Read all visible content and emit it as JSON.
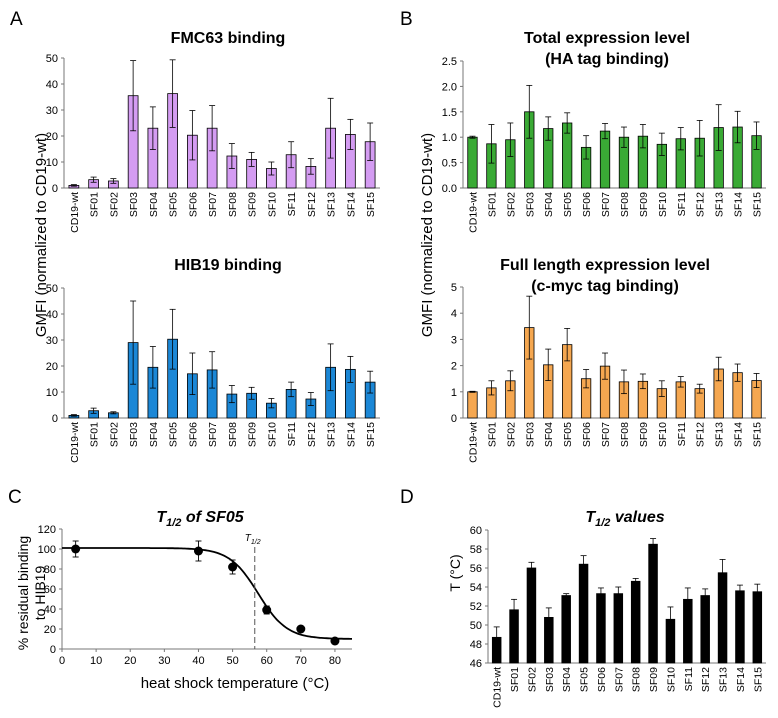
{
  "panels": [
    "A",
    "B",
    "C",
    "D"
  ],
  "shared_ylabel_ab": "GMFI (normalized to CD19-wt)",
  "chart_data": [
    {
      "id": "fmc63",
      "type": "bar",
      "title": "FMC63 binding",
      "color": "#d49cf2",
      "categories": [
        "CD19-wt",
        "SF01",
        "SF02",
        "SF03",
        "SF04",
        "SF05",
        "SF06",
        "SF07",
        "SF08",
        "SF09",
        "SF10",
        "SF11",
        "SF12",
        "SF13",
        "SF14",
        "SF15"
      ],
      "values": [
        1,
        3.2,
        2.7,
        35.5,
        23,
        36.3,
        20.3,
        23,
        12.3,
        11,
        7.5,
        12.8,
        8.3,
        23,
        20.6,
        17.8
      ],
      "errors": [
        0.3,
        1.0,
        0.9,
        13.5,
        8.2,
        13,
        9.5,
        8.7,
        4.8,
        2.7,
        2.5,
        5.0,
        3.0,
        11.5,
        5.8,
        7.2
      ],
      "yticks": [
        "0",
        "10",
        "20",
        "30",
        "40",
        "50"
      ],
      "ylim": [
        0,
        50
      ]
    },
    {
      "id": "ha",
      "type": "bar",
      "title": "Total expression level",
      "subtitle": "(HA tag binding)",
      "color": "#3aaa35",
      "categories": [
        "CD19-wt",
        "SF01",
        "SF02",
        "SF03",
        "SF04",
        "SF05",
        "SF06",
        "SF07",
        "SF08",
        "SF09",
        "SF10",
        "SF11",
        "SF12",
        "SF13",
        "SF14",
        "SF15"
      ],
      "values": [
        1.0,
        0.87,
        0.95,
        1.5,
        1.17,
        1.28,
        0.8,
        1.12,
        1.0,
        1.02,
        0.86,
        0.97,
        0.98,
        1.19,
        1.2,
        1.03
      ],
      "errors": [
        0.02,
        0.38,
        0.33,
        0.52,
        0.23,
        0.2,
        0.23,
        0.15,
        0.2,
        0.23,
        0.22,
        0.22,
        0.35,
        0.45,
        0.31,
        0.27
      ],
      "yticks": [
        "0.0",
        "0.5",
        "1.0",
        "1.5",
        "2.0",
        "2.5"
      ],
      "ylim": [
        0,
        2.5
      ]
    },
    {
      "id": "hib19",
      "type": "bar",
      "title": "HIB19 binding",
      "color": "#1b87d6",
      "categories": [
        "CD19-wt",
        "SF01",
        "SF02",
        "SF03",
        "SF04",
        "SF05",
        "SF06",
        "SF07",
        "SF08",
        "SF09",
        "SF10",
        "SF11",
        "SF12",
        "SF13",
        "SF14",
        "SF15"
      ],
      "values": [
        1,
        2.8,
        2.0,
        29,
        19.5,
        30.3,
        17,
        18.5,
        9.2,
        9.5,
        5.7,
        11,
        7.3,
        19.5,
        18.7,
        13.8
      ],
      "errors": [
        0.3,
        1.0,
        0.4,
        16,
        8.0,
        11.5,
        8.0,
        7.0,
        3.3,
        2.3,
        1.8,
        2.8,
        2.5,
        9.0,
        5.0,
        4.2
      ],
      "yticks": [
        "0",
        "10",
        "20",
        "30",
        "40",
        "50"
      ],
      "ylim": [
        0,
        50
      ]
    },
    {
      "id": "cmyc",
      "type": "bar",
      "title": "Full length expression level",
      "subtitle": "(c-myc tag binding)",
      "color": "#f5a750",
      "categories": [
        "CD19-wt",
        "SF01",
        "SF02",
        "SF03",
        "SF04",
        "SF05",
        "SF06",
        "SF07",
        "SF08",
        "SF09",
        "SF10",
        "SF11",
        "SF12",
        "SF13",
        "SF14",
        "SF15"
      ],
      "values": [
        1.0,
        1.15,
        1.42,
        3.45,
        2.03,
        2.8,
        1.5,
        1.98,
        1.38,
        1.4,
        1.12,
        1.38,
        1.12,
        1.87,
        1.73,
        1.43
      ],
      "errors": [
        0.02,
        0.27,
        0.38,
        1.2,
        0.6,
        0.62,
        0.35,
        0.5,
        0.45,
        0.28,
        0.3,
        0.2,
        0.17,
        0.45,
        0.33,
        0.27
      ],
      "yticks": [
        "0",
        "1",
        "2",
        "3",
        "4",
        "5"
      ],
      "ylim": [
        0,
        5
      ]
    },
    {
      "id": "t12",
      "type": "scatter",
      "title_main": "T",
      "title_sub": "1/2",
      "title_rest": " of SF05",
      "xlabel": "heat shock temperature (°C)",
      "ylabel_line1": "% residual binding",
      "ylabel_line2": "to HIB19",
      "x": [
        4,
        40,
        50,
        56,
        60,
        70,
        80
      ],
      "y": [
        100,
        98,
        82,
        58,
        39,
        20,
        8
      ],
      "errors": [
        8,
        10,
        7,
        0,
        4,
        2,
        1
      ],
      "marker_label_main": "T",
      "marker_label_sub": "1/2",
      "t_half": 56.5,
      "fit": {
        "top": 101,
        "bottom": 10,
        "midpoint": 57.5,
        "slope": 4.2
      },
      "xticks": [
        "0",
        "10",
        "20",
        "30",
        "40",
        "50",
        "60",
        "70",
        "80"
      ],
      "yticks": [
        "0",
        "20",
        "40",
        "60",
        "80",
        "100",
        "120"
      ],
      "xlim": [
        0,
        85
      ],
      "ylim": [
        0,
        120
      ]
    },
    {
      "id": "thalf",
      "type": "bar",
      "title_main": "T",
      "title_sub": "1/2",
      "title_rest": " values",
      "ylabel": "T (°C)",
      "color": "#000000",
      "categories": [
        "CD19-wt",
        "SF01",
        "SF02",
        "SF03",
        "SF04",
        "SF05",
        "SF06",
        "SF07",
        "SF08",
        "SF09",
        "SF10",
        "SF11",
        "SF12",
        "SF13",
        "SF14",
        "SF15"
      ],
      "values": [
        48.7,
        51.6,
        56.0,
        50.8,
        53.1,
        56.4,
        53.3,
        53.3,
        54.6,
        58.5,
        50.6,
        52.7,
        53.1,
        55.5,
        53.6,
        53.5
      ],
      "errors": [
        1.1,
        1.1,
        0.6,
        1.0,
        0.2,
        0.9,
        0.6,
        0.7,
        0.3,
        0.6,
        1.3,
        1.2,
        0.7,
        1.4,
        0.6,
        0.8
      ],
      "yticks": [
        "46",
        "48",
        "50",
        "52",
        "54",
        "56",
        "58",
        "60"
      ],
      "ylim": [
        46,
        60
      ]
    }
  ]
}
